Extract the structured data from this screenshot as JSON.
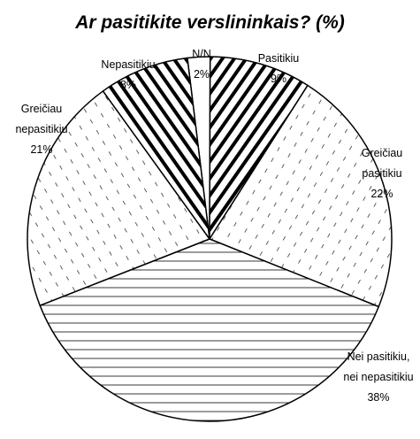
{
  "chart_data": {
    "type": "pie",
    "title": "Ar pasitikite verslininkais? (%)",
    "categories": [
      "N/N",
      "Pasitikiu",
      "Greičiau pasitikiu",
      "Nei pasitikiu, nei nepasitikiu",
      "Greičiau nepasitikiu",
      "Nepasitikiu"
    ],
    "values": [
      2,
      9,
      22,
      38,
      21,
      8
    ],
    "value_labels": [
      "2%",
      "9%",
      "22%",
      "38%",
      "21%",
      "8%"
    ]
  }
}
